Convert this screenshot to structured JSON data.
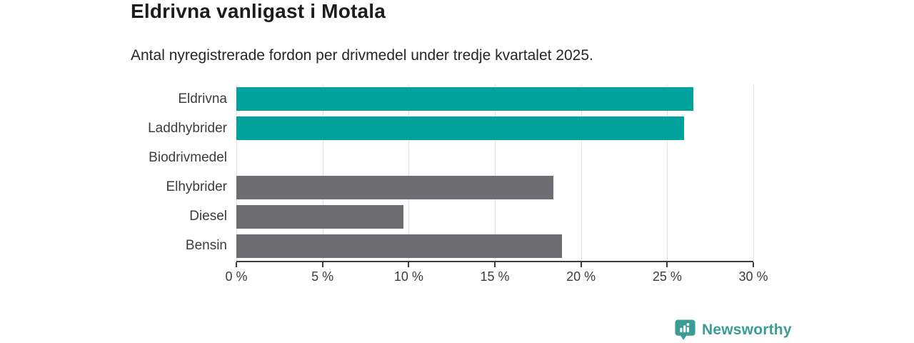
{
  "chart_data": {
    "type": "bar",
    "orientation": "horizontal",
    "title": "Eldrivna vanligast i Motala",
    "subtitle": "Antal nyregistrerade fordon per drivmedel under tredje kvartalet 2025.",
    "categories": [
      "Eldrivna",
      "Laddhybrider",
      "Biodrivmedel",
      "Elhybrider",
      "Diesel",
      "Bensin"
    ],
    "values": [
      26.5,
      26.0,
      0,
      18.4,
      9.7,
      18.9
    ],
    "unit": "%",
    "xlabel": "",
    "ylabel": "",
    "xlim": [
      0,
      30
    ],
    "x_ticks": [
      0,
      5,
      10,
      15,
      20,
      25,
      30
    ],
    "x_tick_labels": [
      "0 %",
      "5 %",
      "10 %",
      "15 %",
      "20 %",
      "25 %",
      "30 %"
    ],
    "grid": true,
    "legend": false,
    "colors": {
      "highlight": "#00A29B",
      "default": "#6E6D72",
      "gridline": "#E2E2E2",
      "axis": "#3C3C3C"
    },
    "bar_color_keys": [
      "highlight",
      "highlight",
      "default",
      "default",
      "default",
      "default"
    ]
  },
  "footer": {
    "brand": "Newsworthy",
    "brand_color": "#3B9C95"
  }
}
